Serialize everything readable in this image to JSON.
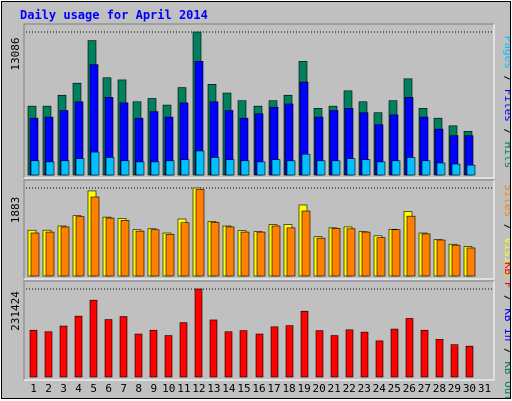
{
  "title": "Daily usage for April 2014",
  "colors": {
    "background": "#c0c0c0",
    "panel": "#c0c0c0",
    "hits": "#00805c",
    "files": "#0000ff",
    "pages": "#00c0ff",
    "visits": "#ffff00",
    "sites": "#ff8000",
    "kb_in": "#ff0000",
    "kb_out": "#00805c",
    "weekend_label": "#00805c"
  },
  "chart_data": {
    "type": "bar",
    "categories": [
      "1",
      "2",
      "3",
      "4",
      "5",
      "6",
      "7",
      "8",
      "9",
      "10",
      "11",
      "12",
      "13",
      "14",
      "15",
      "16",
      "17",
      "18",
      "19",
      "20",
      "21",
      "22",
      "23",
      "24",
      "25",
      "26",
      "27",
      "28",
      "29",
      "30",
      "31"
    ],
    "weekend_days": [
      "5",
      "6",
      "12",
      "13",
      "19",
      "20",
      "26",
      "27"
    ],
    "panels": [
      {
        "id": "hits",
        "max_label": "13086",
        "ylim": [
          0,
          13086
        ],
        "axis_labels": [
          {
            "text": "Pages",
            "color": "#00c0ff"
          },
          {
            "text": " / ",
            "color": "#000000"
          },
          {
            "text": "Files",
            "color": "#0000ff"
          },
          {
            "text": " / ",
            "color": "#000000"
          },
          {
            "text": "Hits",
            "color": "#00805c"
          }
        ],
        "series": [
          {
            "name": "Hits",
            "color": "#00805c",
            "values": [
              6300,
              6300,
              7300,
              8400,
              12300,
              8900,
              8700,
              6700,
              7000,
              6400,
              8000,
              13086,
              8300,
              7500,
              6800,
              6300,
              6800,
              7300,
              10400,
              6100,
              6300,
              7700,
              6700,
              5700,
              6800,
              8800,
              6100,
              5200,
              4500,
              4000,
              0
            ]
          },
          {
            "name": "Files",
            "color": "#0000ff",
            "values": [
              5200,
              5300,
              5900,
              6700,
              10100,
              7100,
              6600,
              5200,
              5800,
              5300,
              6600,
              10400,
              6700,
              5900,
              5200,
              5600,
              6200,
              6500,
              8500,
              5300,
              5900,
              6100,
              5700,
              4600,
              5500,
              7100,
              5300,
              4200,
              3600,
              3600,
              0
            ]
          },
          {
            "name": "Pages",
            "color": "#00c0ff",
            "values": [
              1300,
              1200,
              1300,
              1500,
              2100,
              1600,
              1300,
              1200,
              1200,
              1300,
              1400,
              2200,
              1600,
              1400,
              1300,
              1200,
              1400,
              1300,
              1900,
              1300,
              1300,
              1500,
              1400,
              1200,
              1300,
              1600,
              1300,
              1100,
              1000,
              900,
              0
            ]
          }
        ]
      },
      {
        "id": "visits",
        "max_label": "1883",
        "ylim": [
          0,
          1883
        ],
        "axis_labels": [
          {
            "text": "Sites",
            "color": "#ff8000"
          },
          {
            "text": " / ",
            "color": "#000000"
          },
          {
            "text": "Visits",
            "color": "#ffff00"
          }
        ],
        "series": [
          {
            "name": "Visits",
            "color": "#ffff00",
            "values": [
              980,
              980,
              1070,
              1290,
              1820,
              1260,
              1230,
              990,
              1010,
              920,
              1220,
              1883,
              1170,
              1070,
              970,
              950,
              1100,
              1100,
              1520,
              840,
              1030,
              1050,
              950,
              860,
              1000,
              1380,
              920,
              780,
              680,
              630,
              0
            ]
          },
          {
            "name": "Sites",
            "color": "#ff8000",
            "values": [
              920,
              940,
              1050,
              1270,
              1690,
              1240,
              1190,
              960,
              990,
              890,
              1140,
              1850,
              1150,
              1050,
              940,
              940,
              1070,
              1030,
              1390,
              810,
              1020,
              1010,
              940,
              820,
              990,
              1280,
              900,
              770,
              660,
              600,
              0
            ]
          }
        ]
      },
      {
        "id": "kbytes",
        "max_label": "231424",
        "ylim": [
          0,
          231424
        ],
        "axis_labels": [
          {
            "text": "KB F",
            "color": "#ff0000"
          },
          {
            "text": " / ",
            "color": "#000000"
          },
          {
            "text": "KB In",
            "color": "#0000ff"
          },
          {
            "text": " / ",
            "color": "#000000"
          },
          {
            "text": "KB Out",
            "color": "#00805c"
          }
        ],
        "series": [
          {
            "name": "KB F",
            "color": "#ff0000",
            "values": [
              123000,
              119000,
              134000,
              160000,
              202000,
              151000,
              159000,
              113000,
              123000,
              109000,
              143000,
              231424,
              150000,
              119000,
              122000,
              113000,
              132000,
              135000,
              173000,
              122000,
              109000,
              124000,
              118000,
              95000,
              126000,
              154000,
              123000,
              99000,
              85000,
              81000,
              0
            ]
          }
        ]
      }
    ]
  }
}
